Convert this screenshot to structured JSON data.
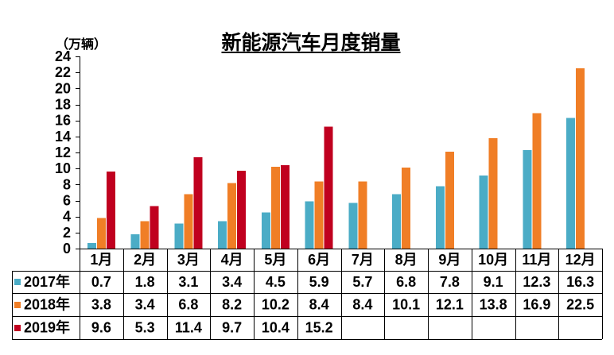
{
  "chart_data": {
    "type": "bar",
    "title": "新能源汽车月度销量",
    "ylabel": "（万辆）",
    "ylim": [
      0,
      24
    ],
    "yticks": [
      0,
      2,
      4,
      6,
      8,
      10,
      12,
      14,
      16,
      18,
      20,
      22,
      24
    ],
    "grid": false,
    "legend": "left-of-data-table",
    "show_data_table": true,
    "categories": [
      "1月",
      "2月",
      "3月",
      "4月",
      "5月",
      "6月",
      "7月",
      "8月",
      "9月",
      "10月",
      "11月",
      "12月"
    ],
    "series": [
      {
        "name": "2017年",
        "color": "#4BACC6",
        "values": [
          0.7,
          1.8,
          3.1,
          3.4,
          4.5,
          5.9,
          5.7,
          6.8,
          7.8,
          9.1,
          12.3,
          16.3
        ]
      },
      {
        "name": "2018年",
        "color": "#F07E26",
        "values": [
          3.8,
          3.4,
          6.8,
          8.2,
          10.2,
          8.4,
          8.4,
          10.1,
          12.1,
          13.8,
          16.9,
          22.5
        ]
      },
      {
        "name": "2019年",
        "color": "#C0001F",
        "values": [
          9.6,
          5.3,
          11.4,
          9.7,
          10.4,
          15.2,
          null,
          null,
          null,
          null,
          null,
          null
        ]
      }
    ]
  }
}
